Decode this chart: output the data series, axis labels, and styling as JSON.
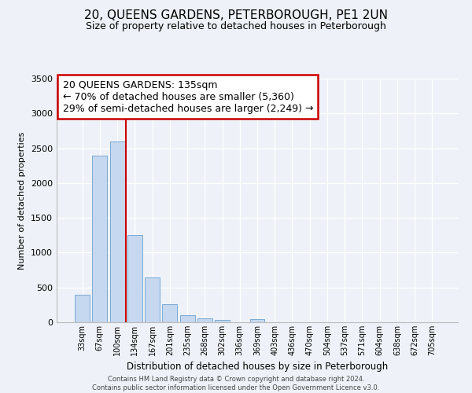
{
  "title": "20, QUEENS GARDENS, PETERBOROUGH, PE1 2UN",
  "subtitle": "Size of property relative to detached houses in Peterborough",
  "xlabel": "Distribution of detached houses by size in Peterborough",
  "ylabel": "Number of detached properties",
  "categories": [
    "33sqm",
    "67sqm",
    "100sqm",
    "134sqm",
    "167sqm",
    "201sqm",
    "235sqm",
    "268sqm",
    "302sqm",
    "336sqm",
    "369sqm",
    "403sqm",
    "436sqm",
    "470sqm",
    "504sqm",
    "537sqm",
    "571sqm",
    "604sqm",
    "638sqm",
    "672sqm",
    "705sqm"
  ],
  "values": [
    390,
    2390,
    2600,
    1250,
    640,
    260,
    100,
    55,
    30,
    0,
    40,
    0,
    0,
    0,
    0,
    0,
    0,
    0,
    0,
    0,
    0
  ],
  "bar_color": "#c5d8f0",
  "bar_edge_color": "#7aaad4",
  "vline_color": "#cc0000",
  "vline_xindex": 3,
  "annotation_title": "20 QUEENS GARDENS: 135sqm",
  "annotation_line1": "← 70% of detached houses are smaller (5,360)",
  "annotation_line2": "29% of semi-detached houses are larger (2,249) →",
  "annotation_box_edgecolor": "#cc0000",
  "annotation_box_facecolor": "#ffffff",
  "ylim": [
    0,
    3500
  ],
  "yticks": [
    0,
    500,
    1000,
    1500,
    2000,
    2500,
    3000,
    3500
  ],
  "footer_line1": "Contains HM Land Registry data © Crown copyright and database right 2024.",
  "footer_line2": "Contains public sector information licensed under the Open Government Licence v3.0.",
  "bg_color": "#eef2f8",
  "grid_color": "#ffffff",
  "title_fontsize": 11,
  "subtitle_fontsize": 9,
  "annotation_fontsize": 9
}
